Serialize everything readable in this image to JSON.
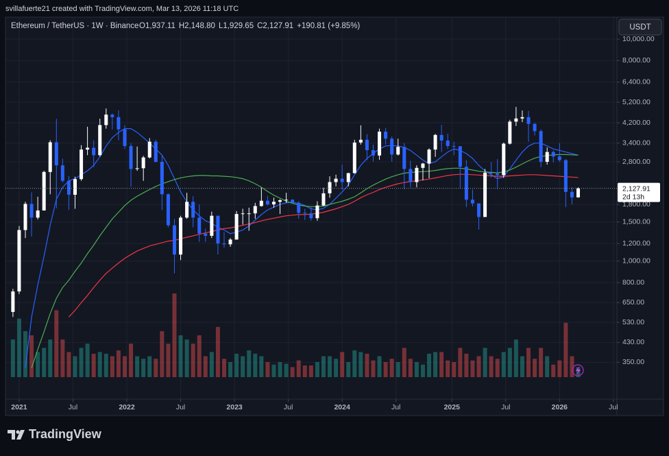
{
  "header": "svillafuerte21 created with TradingView.com, Mar 13, 2026 11:18 UTC",
  "currency": "USDT",
  "logo": "TradingView",
  "chart_data": {
    "type": "candlestick",
    "title": "Ethereum / TetherUS · 1W · Binance",
    "ohlc_labels": [
      "O1,937.11",
      "H2,148.80",
      "L1,929.65",
      "C2,127.91"
    ],
    "change": "+190.81 (+9.85%)",
    "last_price": {
      "value": 2127.91,
      "label": "2,127.91"
    },
    "countdown": "2d 13h",
    "log_scale": true,
    "grid": true,
    "up_color": "#ffffff",
    "down_color": "#2962ff",
    "volume_up_color": "#26a69a",
    "volume_down_color": "#ef5350",
    "xlim": [
      -6.6,
      288.7
    ],
    "ylim": [
      300,
      12560
    ],
    "xticks": [
      {
        "value": 0,
        "label": "2021"
      },
      {
        "value": 26,
        "label": "Jul"
      },
      {
        "value": 52,
        "label": "2022"
      },
      {
        "value": 78,
        "label": "Jul"
      },
      {
        "value": 104,
        "label": "2023"
      },
      {
        "value": 130,
        "label": "Jul"
      },
      {
        "value": 156,
        "label": "2024"
      },
      {
        "value": 182,
        "label": "Jul"
      },
      {
        "value": 209,
        "label": "2025"
      },
      {
        "value": 235,
        "label": "Jul"
      },
      {
        "value": 261,
        "label": "2026"
      },
      {
        "value": 287,
        "label": "Jul"
      }
    ],
    "yticks": [
      {
        "value": 10000,
        "label": "10,000.00"
      },
      {
        "value": 8000,
        "label": "8,000.00"
      },
      {
        "value": 6400,
        "label": "6,400.00"
      },
      {
        "value": 5200,
        "label": "5,200.00"
      },
      {
        "value": 4200,
        "label": "4,200.00"
      },
      {
        "value": 3400,
        "label": "3,400.00"
      },
      {
        "value": 2800,
        "label": "2,800.00"
      },
      {
        "value": 1800,
        "label": "1,800.00"
      },
      {
        "value": 1500,
        "label": "1,500.00"
      },
      {
        "value": 1200,
        "label": "1,200.00"
      },
      {
        "value": 1000,
        "label": "1,000.00"
      },
      {
        "value": 800,
        "label": "800.00"
      },
      {
        "value": 650,
        "label": "650.00"
      },
      {
        "value": 530,
        "label": "530.00"
      },
      {
        "value": 430,
        "label": "430.00"
      },
      {
        "value": 350,
        "label": "350.00"
      }
    ],
    "x": [
      -3,
      0,
      3,
      6,
      9,
      12,
      15,
      18,
      21,
      24,
      27,
      30,
      33,
      36,
      39,
      42,
      45,
      48,
      51,
      54,
      57,
      60,
      63,
      66,
      69,
      72,
      75,
      78,
      81,
      84,
      87,
      90,
      93,
      96,
      99,
      102,
      105,
      108,
      111,
      114,
      117,
      120,
      123,
      126,
      129,
      132,
      135,
      138,
      141,
      144,
      147,
      150,
      153,
      156,
      159,
      162,
      165,
      168,
      171,
      174,
      177,
      180,
      183,
      186,
      189,
      192,
      195,
      198,
      201,
      204,
      207,
      210,
      213,
      216,
      219,
      222,
      225,
      228,
      231,
      234,
      237,
      240,
      243,
      246,
      249,
      252,
      255,
      258,
      261,
      264,
      267,
      270
    ],
    "open": [
      590,
      730,
      1380,
      1810,
      1570,
      1690,
      2520,
      3430,
      2700,
      2300,
      1990,
      2340,
      3180,
      3240,
      3000,
      4100,
      4570,
      4450,
      3920,
      3300,
      2600,
      2620,
      2930,
      3450,
      2800,
      2000,
      1450,
      1070,
      1570,
      1850,
      1570,
      1330,
      1300,
      1600,
      1200,
      1190,
      1250,
      1630,
      1640,
      1640,
      1770,
      1870,
      1800,
      1850,
      1880,
      1890,
      1830,
      1650,
      1640,
      1560,
      1780,
      2020,
      2270,
      2350,
      2270,
      2490,
      3420,
      3520,
      3160,
      2990,
      3830,
      3560,
      3020,
      3270,
      2600,
      2270,
      2630,
      2750,
      3180,
      3700,
      3490,
      3300,
      3290,
      2660,
      1890,
      1820,
      1580,
      2500,
      2480,
      2440,
      3380,
      4250,
      4390,
      4450,
      4150,
      3850,
      2800,
      3100,
      2960,
      2850,
      2050,
      1937.11
    ],
    "high": [
      750,
      1440,
      1850,
      2040,
      1950,
      2550,
      3500,
      4370,
      2890,
      2420,
      2400,
      3330,
      4030,
      3500,
      4380,
      4870,
      4620,
      4780,
      4100,
      3400,
      3280,
      2980,
      3580,
      3520,
      3000,
      2020,
      1550,
      1600,
      2030,
      1960,
      1800,
      1400,
      1670,
      1600,
      1350,
      1270,
      1680,
      1720,
      1740,
      1830,
      2140,
      1970,
      1930,
      1900,
      2030,
      1900,
      1860,
      1720,
      1750,
      1860,
      2140,
      2410,
      2450,
      2720,
      2500,
      3520,
      4090,
      3730,
      3350,
      3950,
      3980,
      3640,
      3560,
      3400,
      2830,
      2700,
      2770,
      3220,
      3740,
      4110,
      3750,
      3450,
      3300,
      2850,
      2100,
      1820,
      2600,
      2790,
      2880,
      3420,
      4330,
      4950,
      4770,
      4750,
      4190,
      3920,
      3250,
      3150,
      3400,
      2880,
      2150,
      2148.8
    ],
    "low": [
      560,
      710,
      1270,
      1290,
      1540,
      1690,
      2000,
      1730,
      2260,
      1700,
      1720,
      2300,
      3000,
      2650,
      2960,
      3950,
      3920,
      3500,
      3200,
      2160,
      2550,
      2300,
      2900,
      2780,
      1700,
      1420,
      880,
      1010,
      1550,
      1420,
      1220,
      1220,
      1270,
      1070,
      1150,
      1160,
      1250,
      1460,
      1370,
      1550,
      1760,
      1780,
      1740,
      1630,
      1830,
      1820,
      1550,
      1530,
      1520,
      1520,
      1770,
      1930,
      2170,
      2100,
      2170,
      2480,
      3350,
      2850,
      2810,
      2860,
      3350,
      2810,
      2990,
      2110,
      2150,
      2150,
      2310,
      2360,
      2950,
      3100,
      3200,
      3000,
      2120,
      1750,
      1760,
      1385,
      1580,
      2380,
      2110,
      2370,
      3350,
      4060,
      4230,
      3450,
      3680,
      2650,
      2720,
      2780,
      2800,
      1750,
      1800,
      1929.65
    ],
    "close": [
      730,
      1380,
      1810,
      1570,
      1690,
      2520,
      3430,
      2700,
      2300,
      1990,
      2340,
      3180,
      3240,
      3000,
      4100,
      4570,
      4450,
      3920,
      3300,
      2600,
      2620,
      2930,
      3450,
      2800,
      2000,
      1450,
      1070,
      1570,
      1850,
      1570,
      1330,
      1300,
      1600,
      1200,
      1190,
      1250,
      1630,
      1640,
      1640,
      1770,
      1870,
      1800,
      1850,
      1880,
      1890,
      1830,
      1650,
      1640,
      1560,
      1780,
      2020,
      2270,
      2350,
      2270,
      2490,
      3420,
      3520,
      3160,
      2990,
      3830,
      3560,
      3020,
      3270,
      2600,
      2270,
      2630,
      2750,
      3180,
      3700,
      3490,
      3300,
      3290,
      2660,
      1890,
      1820,
      1580,
      2500,
      2480,
      2440,
      3380,
      4250,
      4390,
      4450,
      4150,
      3850,
      2800,
      3100,
      2960,
      2850,
      2050,
      1937.11,
      2127.91
    ],
    "volume": [
      45,
      70,
      55,
      50,
      30,
      35,
      45,
      80,
      45,
      30,
      25,
      35,
      40,
      28,
      30,
      28,
      25,
      32,
      25,
      40,
      25,
      22,
      25,
      22,
      55,
      40,
      100,
      50,
      45,
      40,
      50,
      25,
      30,
      60,
      22,
      18,
      28,
      25,
      32,
      28,
      25,
      18,
      15,
      18,
      16,
      12,
      20,
      14,
      14,
      18,
      25,
      25,
      22,
      30,
      18,
      32,
      30,
      28,
      20,
      25,
      18,
      22,
      18,
      35,
      22,
      18,
      15,
      28,
      30,
      30,
      20,
      18,
      35,
      28,
      20,
      25,
      35,
      25,
      22,
      30,
      35,
      45,
      25,
      35,
      22,
      35,
      25,
      15,
      20,
      65,
      25,
      12
    ],
    "lines": [
      {
        "color": "#2962ff",
        "values": [
          null,
          null,
          330,
          560,
          780,
          1050,
          1450,
          1900,
          2150,
          2300,
          2350,
          2450,
          2550,
          2700,
          2950,
          3300,
          3600,
          3800,
          3950,
          3950,
          3800,
          3600,
          3400,
          3200,
          3000,
          2700,
          2350,
          2050,
          1850,
          1700,
          1600,
          1520,
          1480,
          1420,
          1380,
          1330,
          1350,
          1380,
          1440,
          1530,
          1620,
          1700,
          1750,
          1800,
          1830,
          1840,
          1820,
          1780,
          1720,
          1700,
          1730,
          1800,
          1920,
          2050,
          2200,
          2450,
          2700,
          2900,
          3050,
          3200,
          3300,
          3320,
          3300,
          3250,
          3150,
          3000,
          2850,
          2750,
          2800,
          2950,
          3100,
          3200,
          3150,
          3050,
          2900,
          2700,
          2550,
          2450,
          2350,
          2400,
          2600,
          2850,
          3100,
          3300,
          3400,
          3400,
          3300,
          3200,
          3150,
          3100,
          3050,
          3000
        ]
      },
      {
        "color": "#4caf50",
        "values": [
          null,
          null,
          null,
          330,
          400,
          480,
          580,
          680,
          760,
          820,
          900,
          980,
          1080,
          1180,
          1300,
          1420,
          1550,
          1660,
          1780,
          1880,
          1960,
          2030,
          2100,
          2170,
          2230,
          2280,
          2330,
          2370,
          2400,
          2420,
          2430,
          2430,
          2420,
          2420,
          2410,
          2400,
          2380,
          2350,
          2300,
          2230,
          2150,
          2060,
          1980,
          1920,
          1860,
          1820,
          1790,
          1770,
          1760,
          1760,
          1770,
          1800,
          1830,
          1860,
          1900,
          1950,
          2030,
          2120,
          2200,
          2270,
          2340,
          2400,
          2450,
          2490,
          2510,
          2520,
          2530,
          2540,
          2560,
          2590,
          2610,
          2620,
          2620,
          2600,
          2570,
          2540,
          2520,
          2510,
          2500,
          2520,
          2570,
          2650,
          2740,
          2830,
          2910,
          2960,
          2990,
          3010,
          3020,
          3020,
          3010,
          3000
        ]
      },
      {
        "color": "#f23645",
        "values": [
          null,
          null,
          null,
          null,
          null,
          null,
          null,
          null,
          null,
          560,
          600,
          650,
          700,
          760,
          820,
          880,
          930,
          980,
          1030,
          1070,
          1110,
          1140,
          1170,
          1190,
          1210,
          1230,
          1240,
          1260,
          1280,
          1300,
          1320,
          1340,
          1360,
          1380,
          1400,
          1410,
          1430,
          1450,
          1470,
          1490,
          1520,
          1540,
          1560,
          1580,
          1600,
          1610,
          1620,
          1620,
          1630,
          1640,
          1660,
          1690,
          1720,
          1760,
          1800,
          1860,
          1930,
          1990,
          2040,
          2100,
          2150,
          2190,
          2230,
          2260,
          2280,
          2300,
          2320,
          2340,
          2370,
          2400,
          2430,
          2450,
          2460,
          2460,
          2450,
          2440,
          2430,
          2420,
          2410,
          2410,
          2420,
          2430,
          2440,
          2450,
          2450,
          2440,
          2430,
          2420,
          2410,
          2400,
          2390,
          2380
        ]
      }
    ]
  }
}
